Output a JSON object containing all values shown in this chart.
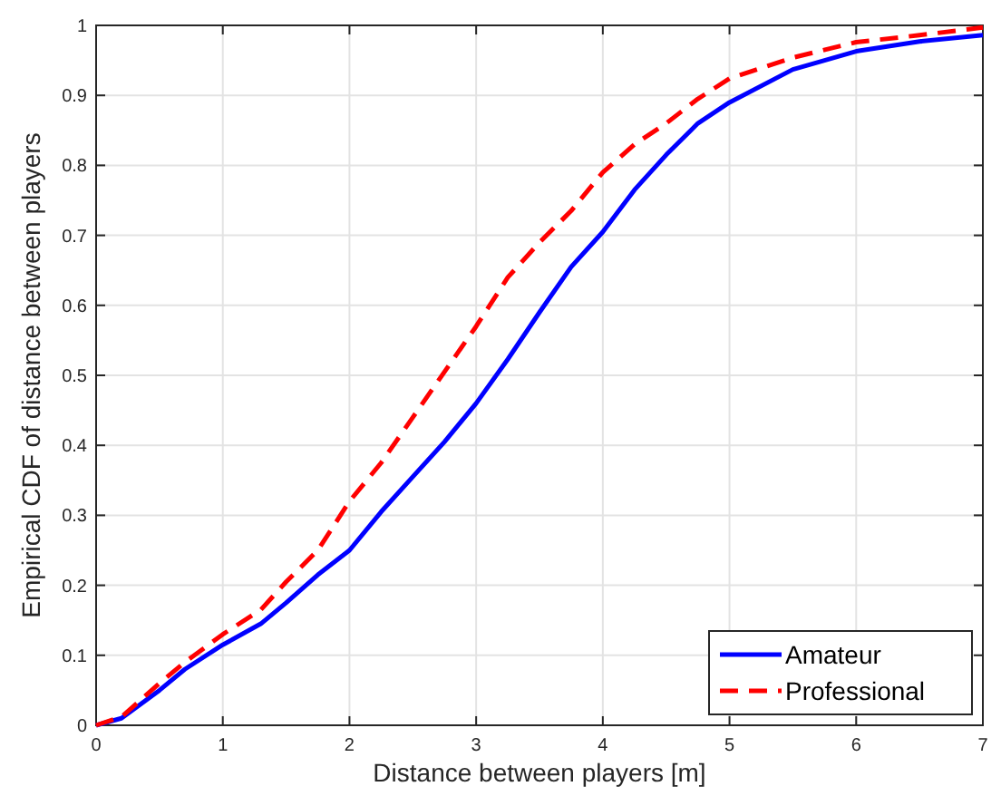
{
  "chart_data": {
    "type": "line",
    "xlabel": "Distance between players [m]",
    "ylabel": "Empirical CDF of distance between players",
    "x": [
      0,
      0.2,
      0.5,
      0.7,
      1,
      1.3,
      1.5,
      1.75,
      2,
      2.25,
      2.5,
      2.75,
      3,
      3.25,
      3.5,
      3.75,
      4,
      4.25,
      4.5,
      4.75,
      5,
      5.5,
      6,
      6.5,
      7
    ],
    "series": [
      {
        "name": "Amateur",
        "color": "#0000ff",
        "line_style": "solid",
        "values": [
          0,
          0.01,
          0.05,
          0.08,
          0.115,
          0.145,
          0.175,
          0.215,
          0.25,
          0.305,
          0.355,
          0.405,
          0.46,
          0.523,
          0.59,
          0.655,
          0.705,
          0.765,
          0.815,
          0.86,
          0.89,
          0.937,
          0.963,
          0.977,
          0.986
        ]
      },
      {
        "name": "Professional",
        "color": "#ff0000",
        "line_style": "dashed",
        "values": [
          0,
          0.012,
          0.06,
          0.09,
          0.13,
          0.165,
          0.205,
          0.25,
          0.32,
          0.375,
          0.44,
          0.505,
          0.57,
          0.64,
          0.69,
          0.735,
          0.79,
          0.83,
          0.86,
          0.895,
          0.924,
          0.954,
          0.976,
          0.986,
          0.997
        ]
      }
    ],
    "xlim": [
      0,
      7
    ],
    "ylim": [
      0,
      1
    ],
    "xticks": [
      0,
      1,
      2,
      3,
      4,
      5,
      6,
      7
    ],
    "yticks": [
      0,
      0.1,
      0.2,
      0.3,
      0.4,
      0.5,
      0.6,
      0.7,
      0.8,
      0.9,
      1
    ],
    "grid": true,
    "legend": "bottom right",
    "marker": "none"
  }
}
